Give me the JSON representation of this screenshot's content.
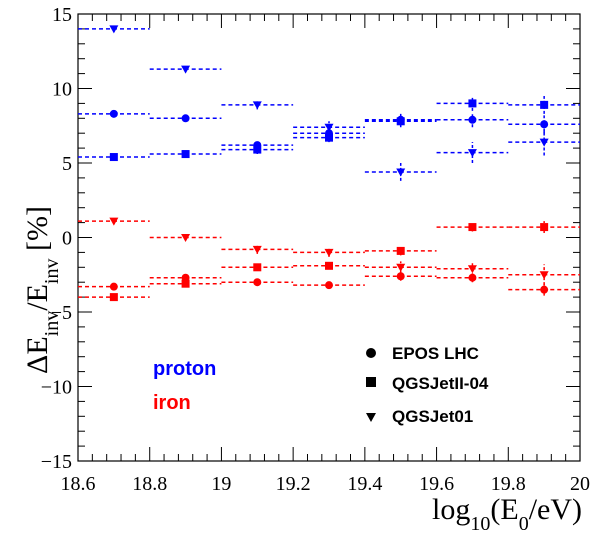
{
  "chart_data": {
    "type": "scatter",
    "xlabel_parts": {
      "pre": "log",
      "sub1": "10",
      "mid": "(E",
      "sub2": "0",
      "post": "/eV)"
    },
    "ylabel_parts": {
      "pre": "ΔE",
      "sub1": "inv",
      "mid": "/E",
      "sub2": "inv",
      "post": " [%]"
    },
    "xlim": [
      18.6,
      20
    ],
    "ylim": [
      -15,
      15
    ],
    "x_ticks": [
      "18.6",
      "18.8",
      "19",
      "19.2",
      "19.4",
      "19.6",
      "19.8",
      "20"
    ],
    "y_ticks": [
      "−15",
      "−10",
      "−5",
      "0",
      "5",
      "10",
      "15"
    ],
    "bin_half_width": 0.1,
    "groups": [
      {
        "label": "proton",
        "color": "#0000ff"
      },
      {
        "label": "iron",
        "color": "#ff0000"
      }
    ],
    "legend": [
      {
        "label": "EPOS LHC",
        "marker": "circle"
      },
      {
        "label": "QGSJetII-04",
        "marker": "square"
      },
      {
        "label": "QGSJet01",
        "marker": "triangle-down"
      }
    ],
    "series": [
      {
        "model": "EPOS LHC",
        "primary": "proton",
        "marker": "circle",
        "color": "#0000ff",
        "x": [
          18.7,
          18.9,
          19.1,
          19.3,
          19.5,
          19.7,
          19.9
        ],
        "y": [
          8.3,
          8.0,
          6.2,
          7.0,
          7.9,
          7.9,
          7.6
        ],
        "err": [
          0.2,
          0.2,
          0.3,
          0.3,
          0.4,
          0.5,
          0.6
        ]
      },
      {
        "model": "QGSJetII-04",
        "primary": "proton",
        "marker": "square",
        "color": "#0000ff",
        "x": [
          18.7,
          18.9,
          19.1,
          19.3,
          19.5,
          19.7,
          19.9
        ],
        "y": [
          5.4,
          5.6,
          5.9,
          6.7,
          7.8,
          9.0,
          8.9
        ],
        "err": [
          0.2,
          0.2,
          0.3,
          0.3,
          0.4,
          0.5,
          0.6
        ]
      },
      {
        "model": "QGSJet01",
        "primary": "proton",
        "marker": "triangle-down",
        "color": "#0000ff",
        "x": [
          18.7,
          18.9,
          19.1,
          19.3,
          19.5,
          19.7,
          19.9
        ],
        "y": [
          14.0,
          11.3,
          8.9,
          7.4,
          4.4,
          5.7,
          6.4
        ],
        "err": [
          0.2,
          0.2,
          0.3,
          0.4,
          0.6,
          0.7,
          0.9
        ]
      },
      {
        "model": "EPOS LHC",
        "primary": "iron",
        "marker": "circle",
        "color": "#ff0000",
        "x": [
          18.7,
          18.9,
          19.1,
          19.3,
          19.5,
          19.7,
          19.9
        ],
        "y": [
          -3.3,
          -2.7,
          -3.0,
          -3.2,
          -2.6,
          -2.7,
          -3.5
        ],
        "err": [
          0.2,
          0.2,
          0.2,
          0.2,
          0.3,
          0.3,
          0.4
        ]
      },
      {
        "model": "QGSJetII-04",
        "primary": "iron",
        "marker": "square",
        "color": "#ff0000",
        "x": [
          18.7,
          18.9,
          19.1,
          19.3,
          19.5,
          19.7,
          19.9
        ],
        "y": [
          -4.0,
          -3.1,
          -2.0,
          -1.9,
          -0.9,
          0.7,
          0.7
        ],
        "err": [
          0.2,
          0.2,
          0.2,
          0.2,
          0.3,
          0.3,
          0.4
        ]
      },
      {
        "model": "QGSJet01",
        "primary": "iron",
        "marker": "triangle-down",
        "color": "#ff0000",
        "x": [
          18.7,
          18.9,
          19.1,
          19.3,
          19.5,
          19.7,
          19.9
        ],
        "y": [
          1.1,
          0.0,
          -0.8,
          -1.0,
          -2.0,
          -2.1,
          -2.5
        ],
        "err": [
          0.2,
          0.2,
          0.3,
          0.3,
          0.4,
          0.5,
          0.7
        ]
      }
    ]
  }
}
